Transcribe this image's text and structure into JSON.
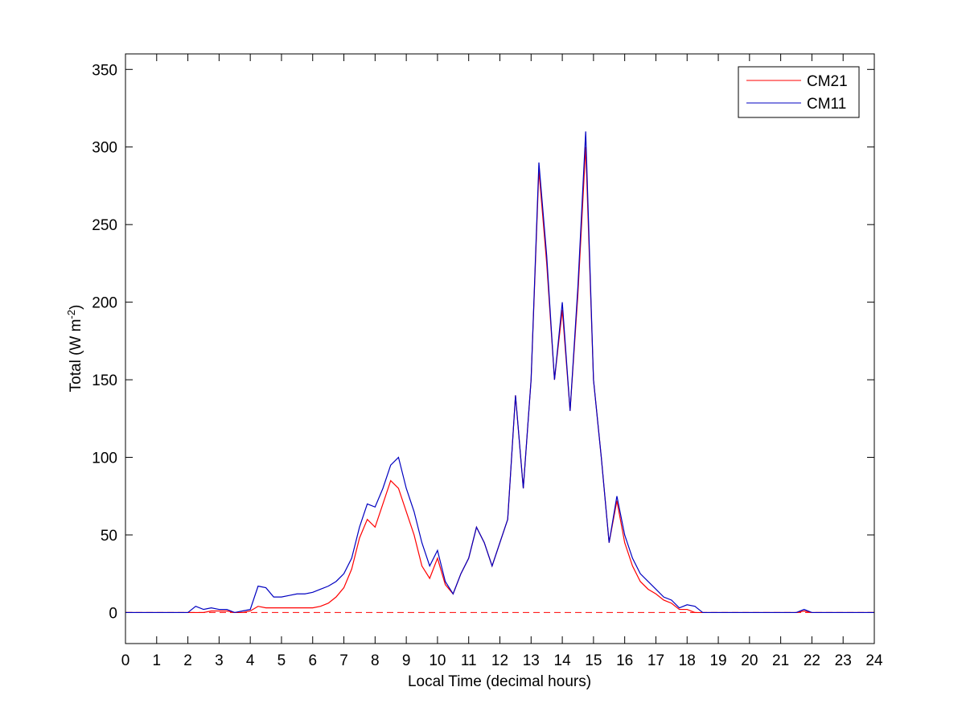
{
  "chart_data": {
    "type": "line",
    "xlabel": "Local Time (decimal hours)",
    "ylabel": [
      "Total (W m",
      "-2",
      ")"
    ],
    "xlim": [
      0,
      24
    ],
    "xticks": [
      0,
      1,
      2,
      3,
      4,
      5,
      6,
      7,
      8,
      9,
      10,
      11,
      12,
      13,
      14,
      15,
      16,
      17,
      18,
      19,
      20,
      21,
      22,
      23,
      24
    ],
    "ylim": [
      -20,
      360
    ],
    "yticks": [
      0,
      50,
      100,
      150,
      200,
      250,
      300,
      350
    ],
    "legend": "upper right",
    "hline": {
      "value": 0,
      "color": "#ff0000",
      "style": "dashed"
    },
    "x": [
      0,
      0.25,
      0.5,
      0.75,
      1,
      1.25,
      1.5,
      1.75,
      2,
      2.25,
      2.5,
      2.75,
      3,
      3.25,
      3.5,
      3.75,
      4,
      4.25,
      4.5,
      4.75,
      5,
      5.25,
      5.5,
      5.75,
      6,
      6.25,
      6.5,
      6.75,
      7,
      7.25,
      7.5,
      7.75,
      8,
      8.25,
      8.5,
      8.75,
      9,
      9.25,
      9.5,
      9.75,
      10,
      10.25,
      10.5,
      10.75,
      11,
      11.25,
      11.5,
      11.75,
      12,
      12.25,
      12.5,
      12.75,
      13,
      13.25,
      13.5,
      13.75,
      14,
      14.25,
      14.5,
      14.75,
      15,
      15.25,
      15.5,
      15.75,
      16,
      16.25,
      16.5,
      16.75,
      17,
      17.25,
      17.5,
      17.75,
      18,
      18.25,
      18.5,
      18.75,
      19,
      19.25,
      19.5,
      19.75,
      20,
      20.25,
      20.5,
      20.75,
      21,
      21.25,
      21.5,
      21.75,
      22,
      22.25,
      22.5,
      22.75,
      23,
      23.25,
      23.5,
      23.75,
      24
    ],
    "series": [
      {
        "name": "CM21",
        "color": "#ff0000",
        "values": [
          0,
          0,
          0,
          0,
          0,
          0,
          0,
          0,
          0,
          0,
          0,
          1,
          1,
          1,
          0,
          0,
          1,
          4,
          3,
          3,
          3,
          3,
          3,
          3,
          3,
          4,
          6,
          10,
          16,
          28,
          48,
          60,
          55,
          70,
          85,
          80,
          65,
          50,
          30,
          22,
          35,
          18,
          12,
          25,
          35,
          55,
          45,
          30,
          45,
          60,
          140,
          80,
          150,
          285,
          225,
          150,
          195,
          130,
          205,
          300,
          150,
          100,
          45,
          72,
          45,
          30,
          20,
          15,
          12,
          8,
          6,
          2,
          2,
          0,
          0,
          0,
          0,
          0,
          0,
          0,
          0,
          0,
          0,
          0,
          0,
          0,
          0,
          1,
          0,
          0,
          0,
          0,
          0,
          0,
          0,
          0,
          0
        ]
      },
      {
        "name": "CM11",
        "color": "#0000c0",
        "values": [
          0,
          0,
          0,
          0,
          0,
          0,
          0,
          0,
          0,
          4,
          2,
          3,
          2,
          2,
          0,
          1,
          2,
          17,
          16,
          10,
          10,
          11,
          12,
          12,
          13,
          15,
          17,
          20,
          25,
          35,
          55,
          70,
          68,
          80,
          95,
          100,
          80,
          65,
          45,
          30,
          40,
          20,
          12,
          25,
          35,
          55,
          45,
          30,
          45,
          60,
          140,
          80,
          150,
          290,
          230,
          150,
          200,
          130,
          210,
          310,
          150,
          100,
          45,
          75,
          50,
          35,
          25,
          20,
          15,
          10,
          8,
          3,
          5,
          4,
          0,
          0,
          0,
          0,
          0,
          0,
          0,
          0,
          0,
          0,
          0,
          0,
          0,
          2,
          0,
          0,
          0,
          0,
          0,
          0,
          0,
          0,
          0
        ]
      }
    ]
  }
}
